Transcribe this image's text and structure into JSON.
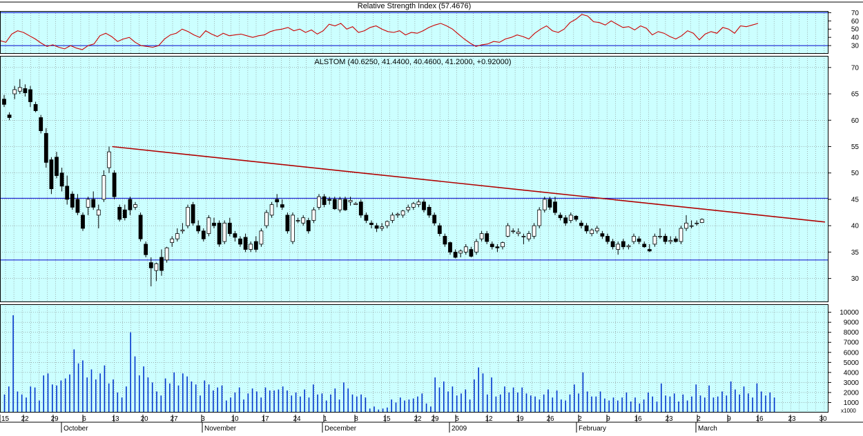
{
  "colors": {
    "background": "#ccffff",
    "grid": "#808080",
    "frame": "#000000",
    "rsi_line": "#cc0000",
    "trend_line": "#b00000",
    "horizontal_line": "#0000cc",
    "volume_bar": "#0033cc",
    "candle_up": "#ffffff",
    "candle_down": "#000000"
  },
  "rsi_panel": {
    "title": "Relative Strength Index (57.4676)",
    "ticks": [
      "70",
      "60",
      "50",
      "40",
      "30"
    ],
    "levels": [
      70,
      30
    ]
  },
  "price_panel": {
    "title": "ALSTOM (40.6250, 41.4400, 40.4600, 41.2000, +0.92000)",
    "ticks": [
      "70",
      "65",
      "60",
      "55",
      "50",
      "45",
      "40",
      "35",
      "30"
    ],
    "resistance": 45.2,
    "support": 33.5
  },
  "volume_panel": {
    "ticks": [
      "10000",
      "9000",
      "8000",
      "7000",
      "6000",
      "5000",
      "4000",
      "3000",
      "2000",
      "1000"
    ],
    "unit": "x1000"
  },
  "x_axis": {
    "day_labels": [
      "15",
      "22",
      "29",
      "6",
      "13",
      "20",
      "27",
      "3",
      "10",
      "17",
      "24",
      "1",
      "8",
      "15",
      "22",
      "29",
      "5",
      "12",
      "19",
      "26",
      "2",
      "9",
      "16",
      "23",
      "2",
      "9",
      "16",
      "23",
      "30"
    ],
    "month_labels": [
      "October",
      "November",
      "December",
      "2009",
      "February",
      "March"
    ]
  },
  "chart_data": [
    {
      "type": "line",
      "title": "Relative Strength Index (57.4676)",
      "ylim": [
        20,
        72
      ],
      "y_ticks": [
        70,
        60,
        50,
        40,
        30
      ],
      "reference_lines": [
        70,
        30
      ],
      "values": [
        36,
        34,
        44,
        48,
        46,
        42,
        38,
        33,
        29,
        31,
        28,
        26,
        30,
        27,
        25,
        30,
        32,
        42,
        45,
        41,
        35,
        38,
        40,
        34,
        30,
        29,
        28,
        30,
        38,
        43,
        45,
        50,
        47,
        43,
        40,
        48,
        44,
        41,
        45,
        42,
        43,
        44,
        42,
        40,
        42,
        43,
        47,
        49,
        50,
        52,
        48,
        50,
        46,
        49,
        44,
        48,
        56,
        54,
        57,
        50,
        53,
        46,
        48,
        52,
        54,
        50,
        47,
        46,
        48,
        43,
        46,
        45,
        48,
        52,
        55,
        57,
        54,
        50,
        44,
        38,
        33,
        29,
        31,
        32,
        35,
        34,
        38,
        40,
        43,
        41,
        38,
        45,
        50,
        54,
        48,
        46,
        50,
        58,
        62,
        68,
        66,
        59,
        58,
        55,
        60,
        56,
        52,
        53,
        49,
        54,
        51,
        43,
        47,
        45,
        41,
        38,
        42,
        48,
        45,
        37,
        44,
        47,
        45,
        52,
        50,
        45,
        54,
        53,
        55,
        57
      ],
      "grid": true
    },
    {
      "type": "candlestick",
      "title": "ALSTOM (40.6250, 41.4400, 40.4600, 41.2000, +0.92000)",
      "ylim": [
        25.5,
        72.2
      ],
      "y_ticks": [
        70,
        65,
        60,
        55,
        50,
        45,
        40,
        35,
        30
      ],
      "horizontal_lines": [
        45.2,
        33.5
      ],
      "trend_line": {
        "start": [
          21,
          55.0
        ],
        "end": [
          196,
          40.7
        ]
      },
      "ohlc": [
        [
          64.0,
          64.8,
          62.5,
          63.0
        ],
        [
          61.0,
          61.5,
          60.0,
          60.5
        ],
        [
          65.0,
          66.5,
          64.0,
          65.8
        ],
        [
          65.5,
          67.8,
          65.0,
          66.2
        ],
        [
          66.0,
          66.8,
          64.5,
          65.2
        ],
        [
          65.8,
          66.5,
          62.5,
          63.5
        ],
        [
          63.0,
          63.5,
          61.5,
          61.8
        ],
        [
          60.5,
          61.0,
          57.5,
          58.0
        ],
        [
          57.5,
          58.5,
          51.0,
          52.0
        ],
        [
          52.5,
          53.0,
          46.0,
          47.0
        ],
        [
          53.0,
          54.0,
          49.0,
          49.5
        ],
        [
          50.0,
          51.0,
          46.5,
          47.5
        ],
        [
          47.5,
          49.5,
          44.0,
          45.0
        ],
        [
          46.0,
          46.5,
          43.0,
          43.5
        ],
        [
          45.0,
          46.0,
          42.0,
          42.5
        ],
        [
          42.0,
          42.5,
          39.0,
          39.5
        ],
        [
          43.5,
          45.5,
          42.0,
          45.0
        ],
        [
          45.0,
          46.5,
          43.0,
          43.5
        ],
        [
          42.0,
          44.0,
          39.5,
          43.0
        ],
        [
          45.0,
          50.5,
          44.5,
          49.5
        ],
        [
          51.0,
          55.0,
          50.0,
          54.0
        ],
        [
          50.0,
          50.5,
          45.0,
          45.5
        ],
        [
          43.5,
          44.0,
          40.8,
          41.2
        ],
        [
          43.0,
          44.0,
          41.0,
          41.5
        ],
        [
          45.0,
          45.5,
          42.0,
          43.0
        ],
        [
          43.5,
          44.5,
          43.0,
          44.0
        ],
        [
          42.0,
          42.5,
          37.0,
          37.5
        ],
        [
          36.5,
          37.0,
          34.0,
          34.5
        ],
        [
          33.0,
          34.0,
          28.5,
          32.0
        ],
        [
          31.5,
          33.0,
          29.5,
          32.8
        ],
        [
          34.0,
          35.5,
          30.5,
          31.5
        ],
        [
          33.5,
          36.0,
          33.0,
          35.8
        ],
        [
          36.8,
          38.0,
          36.0,
          37.5
        ],
        [
          37.5,
          39.5,
          37.0,
          38.5
        ],
        [
          39.0,
          40.5,
          38.5,
          39.2
        ],
        [
          40.0,
          44.0,
          39.5,
          43.5
        ],
        [
          44.0,
          44.5,
          40.0,
          40.5
        ],
        [
          40.0,
          41.0,
          38.5,
          39.0
        ],
        [
          39.0,
          39.5,
          37.0,
          37.5
        ],
        [
          38.5,
          42.0,
          38.0,
          41.5
        ],
        [
          40.5,
          41.5,
          39.5,
          40.0
        ],
        [
          40.5,
          41.0,
          36.0,
          36.5
        ],
        [
          37.0,
          41.0,
          36.5,
          40.5
        ],
        [
          40.5,
          41.5,
          38.0,
          38.5
        ],
        [
          38.5,
          39.0,
          37.0,
          37.8
        ],
        [
          37.5,
          38.0,
          36.0,
          36.5
        ],
        [
          37.8,
          38.5,
          35.0,
          35.5
        ],
        [
          35.5,
          37.0,
          35.0,
          36.5
        ],
        [
          37.0,
          38.0,
          35.0,
          35.5
        ],
        [
          36.5,
          39.5,
          36.0,
          39.0
        ],
        [
          40.0,
          43.0,
          39.5,
          42.5
        ],
        [
          42.0,
          44.5,
          41.5,
          44.0
        ],
        [
          45.0,
          46.0,
          43.5,
          44.5
        ],
        [
          44.0,
          45.0,
          43.0,
          43.5
        ],
        [
          42.0,
          42.5,
          38.5,
          39.0
        ],
        [
          37.0,
          42.5,
          36.5,
          42.0
        ],
        [
          41.0,
          41.5,
          40.5,
          41.0
        ],
        [
          40.5,
          42.0,
          40.0,
          41.5
        ],
        [
          41.0,
          41.5,
          38.5,
          39.0
        ],
        [
          41.0,
          43.5,
          40.5,
          43.0
        ],
        [
          43.5,
          46.0,
          43.0,
          45.5
        ],
        [
          45.5,
          46.0,
          43.5,
          44.0
        ],
        [
          45.0,
          45.5,
          44.0,
          44.8
        ],
        [
          45.0,
          45.5,
          43.0,
          43.2
        ],
        [
          43.0,
          45.5,
          42.5,
          45.0
        ],
        [
          45.0,
          45.5,
          42.8,
          43.0
        ],
        [
          44.5,
          45.5,
          43.8,
          44.8
        ],
        [
          44.0,
          44.5,
          44.0,
          44.2
        ],
        [
          44.5,
          45.0,
          41.5,
          42.0
        ],
        [
          42.0,
          42.5,
          40.5,
          41.0
        ],
        [
          40.5,
          41.0,
          39.5,
          40.2
        ],
        [
          40.0,
          40.5,
          38.8,
          39.5
        ],
        [
          39.5,
          40.5,
          39.0,
          39.8
        ],
        [
          40.0,
          41.0,
          39.5,
          40.8
        ],
        [
          41.0,
          42.5,
          40.5,
          42.0
        ],
        [
          42.0,
          42.5,
          41.5,
          42.2
        ],
        [
          42.0,
          43.0,
          41.5,
          42.8
        ],
        [
          43.0,
          44.0,
          42.5,
          43.5
        ],
        [
          43.5,
          44.5,
          43.0,
          44.2
        ],
        [
          44.0,
          45.0,
          43.5,
          44.5
        ],
        [
          44.5,
          45.0,
          42.5,
          43.0
        ],
        [
          43.5,
          44.0,
          41.5,
          42.0
        ],
        [
          42.0,
          42.5,
          40.0,
          40.5
        ],
        [
          40.0,
          40.5,
          38.0,
          38.5
        ],
        [
          38.0,
          38.5,
          36.0,
          36.5
        ],
        [
          36.8,
          37.0,
          34.5,
          35.0
        ],
        [
          35.0,
          35.5,
          33.8,
          34.0
        ],
        [
          34.8,
          35.5,
          34.0,
          35.2
        ],
        [
          35.0,
          36.5,
          34.5,
          36.0
        ],
        [
          35.5,
          36.0,
          34.0,
          34.2
        ],
        [
          35.0,
          37.5,
          34.5,
          37.0
        ],
        [
          37.5,
          39.0,
          37.0,
          38.5
        ],
        [
          38.5,
          39.0,
          36.5,
          37.0
        ],
        [
          36.5,
          37.0,
          35.5,
          36.0
        ],
        [
          36.0,
          36.5,
          35.0,
          35.8
        ],
        [
          36.0,
          37.0,
          35.5,
          36.8
        ],
        [
          38.0,
          40.5,
          37.8,
          40.0
        ],
        [
          39.0,
          39.5,
          38.5,
          39.0
        ],
        [
          38.5,
          39.5,
          38.0,
          38.8
        ],
        [
          38.0,
          38.5,
          36.5,
          38.0
        ],
        [
          37.5,
          39.0,
          37.0,
          38.5
        ],
        [
          38.0,
          40.5,
          37.5,
          40.0
        ],
        [
          40.0,
          43.5,
          39.5,
          43.0
        ],
        [
          43.0,
          45.5,
          42.5,
          45.0
        ],
        [
          45.0,
          45.5,
          43.0,
          43.5
        ],
        [
          44.5,
          45.5,
          42.0,
          42.5
        ],
        [
          42.0,
          42.5,
          41.0,
          41.5
        ],
        [
          41.5,
          42.0,
          40.0,
          40.5
        ],
        [
          41.0,
          42.5,
          40.5,
          42.0
        ],
        [
          41.8,
          42.0,
          40.8,
          41.2
        ],
        [
          40.5,
          41.0,
          39.5,
          40.0
        ],
        [
          40.0,
          40.5,
          38.5,
          39.0
        ],
        [
          38.5,
          39.5,
          38.0,
          39.2
        ],
        [
          39.0,
          40.0,
          38.5,
          39.5
        ],
        [
          38.5,
          39.0,
          37.5,
          38.0
        ],
        [
          38.0,
          38.5,
          36.5,
          37.0
        ],
        [
          37.0,
          37.5,
          35.5,
          36.0
        ],
        [
          35.5,
          37.0,
          34.5,
          36.5
        ],
        [
          37.0,
          37.5,
          35.5,
          36.0
        ],
        [
          36.0,
          36.5,
          35.5,
          36.2
        ],
        [
          37.0,
          38.5,
          36.5,
          38.0
        ],
        [
          37.5,
          38.0,
          36.5,
          37.0
        ],
        [
          36.5,
          37.0,
          35.8,
          36.0
        ],
        [
          35.5,
          36.5,
          35.0,
          35.2
        ],
        [
          36.5,
          38.5,
          36.0,
          38.0
        ],
        [
          38.0,
          39.5,
          37.5,
          38.0
        ],
        [
          38.0,
          38.5,
          36.5,
          37.0
        ],
        [
          37.0,
          38.0,
          36.5,
          37.2
        ],
        [
          37.5,
          38.0,
          36.8,
          37.0
        ],
        [
          37.0,
          40.0,
          36.5,
          39.5
        ],
        [
          39.5,
          42.0,
          39.0,
          40.5
        ],
        [
          40.0,
          41.0,
          39.5,
          40.0
        ],
        [
          40.5,
          41.0,
          40.0,
          40.5
        ],
        [
          40.6,
          41.4,
          40.5,
          41.2
        ]
      ],
      "grid": true
    },
    {
      "type": "bar",
      "unit": "x1000",
      "ylim": [
        0,
        10800
      ],
      "y_ticks": [
        10000,
        9000,
        8000,
        7000,
        6000,
        5000,
        4000,
        3000,
        2000,
        1000
      ],
      "values": [
        1800,
        2600,
        9700,
        2100,
        1800,
        1500,
        2600,
        2500,
        1200,
        3700,
        3900,
        2800,
        2700,
        3200,
        3400,
        3800,
        6300,
        4900,
        5200,
        3500,
        4300,
        3300,
        3900,
        4700,
        2900,
        3300,
        2000,
        1500,
        2600,
        8000,
        5600,
        3700,
        4600,
        3500,
        3000,
        2100,
        1700,
        3400,
        2900,
        4000,
        2700,
        3900,
        3600,
        3100,
        2800,
        1700,
        3200,
        2800,
        2200,
        2500,
        2700,
        1200,
        1500,
        2000,
        2500,
        1300,
        1900,
        2400,
        2100,
        1500,
        2500,
        2200,
        2200,
        2300,
        2600,
        2200,
        1700,
        2000,
        1600,
        2300,
        1500,
        2800,
        1800,
        1900,
        1200,
        1800,
        2400,
        1300,
        3000,
        2400,
        1800,
        1600,
        1800,
        1500,
        400,
        600,
        300,
        400,
        500,
        1300,
        1000,
        1500,
        1200,
        1300,
        1400,
        1600,
        1900,
        900,
        600,
        3500,
        2500,
        3100,
        2100,
        2600,
        1700,
        1900,
        2300,
        1300,
        3300,
        4500,
        3900,
        1800,
        3500,
        1600,
        1800,
        2600,
        2000,
        2500,
        2000,
        2500,
        1900,
        1700,
        1600,
        1300,
        1800,
        2300,
        1500,
        2200,
        1300,
        1200,
        1800,
        2800,
        1900,
        4000,
        2100,
        1600,
        1600,
        2100,
        1400,
        1200,
        1500,
        1200,
        1500,
        2000,
        1100,
        1500,
        900,
        1300,
        2000,
        1600,
        1100,
        2900,
        1700,
        1600,
        1900,
        1100,
        1800,
        1200,
        1600,
        2800,
        1700,
        1500,
        2700,
        1500,
        1600,
        2100,
        1700,
        3100,
        2300,
        1800,
        2600,
        1900,
        1500,
        2900,
        2100,
        1700,
        2000,
        1500
      ],
      "grid": true
    }
  ]
}
